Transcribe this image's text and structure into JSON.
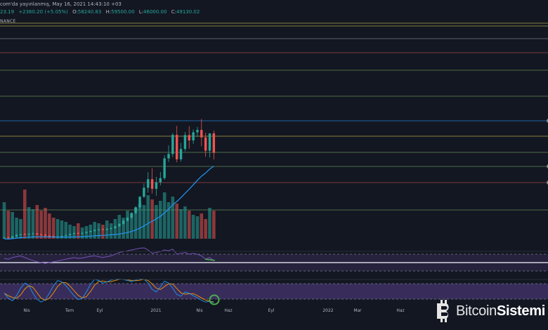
{
  "header": {
    "publisher_suffix": "com'da yayınlanmış, May 16, 2021 14:43:10 +03"
  },
  "quote": {
    "last_fragment": "23.19",
    "change": "+2360.20 (+5.05%)",
    "open_label": "O:",
    "open": "58240.83",
    "high_label": "H:",
    "high": "59500.00",
    "low_label": "L:",
    "low": "46000.00",
    "close_label": "C:",
    "close": "49130.02"
  },
  "exchange_fragment": "NANCE",
  "logo": {
    "text_light": "Bitcoin",
    "text_bold": "Sistemi",
    "icon": "bitcoin-b-icon"
  },
  "chart_data": {
    "type": "candlestick",
    "x_axis_labels": [
      "Nis",
      "Tem",
      "Eyl",
      "2021",
      "Nis",
      "Haz",
      "Eyl",
      "2022",
      "Mar",
      "Haz"
    ],
    "colors": {
      "up": "#26a69a",
      "down": "#ef5350",
      "ma": "#2196f3",
      "rsi": "#7e57c2",
      "stoch_k": "#2196f3",
      "stoch_d": "#ff9800",
      "background": "#131722",
      "highlight_circle": "#4caf50"
    },
    "horizontal_levels": [
      {
        "color": "#c9b84c"
      },
      {
        "color": "#c9b84c"
      },
      {
        "color": "#8c8c8c"
      },
      {
        "color": "#b24b4b"
      },
      {
        "color": "#6b9b5a"
      },
      {
        "color": "#6b9b5a"
      },
      {
        "color": "#2196f3"
      },
      {
        "color": "#c9b84c"
      },
      {
        "color": "#6b9b5a"
      },
      {
        "color": "#6b9b5a"
      },
      {
        "color": "#b24b4b"
      },
      {
        "color": "#6b9b5a"
      }
    ],
    "candles_ohlc": [
      [
        9.3,
        9.8,
        9.1,
        9.6
      ],
      [
        9.6,
        10.2,
        9.3,
        9.4
      ],
      [
        9.4,
        10.4,
        9.2,
        10.1
      ],
      [
        10.1,
        11.0,
        9.9,
        10.8
      ],
      [
        10.8,
        11.3,
        10.5,
        11.1
      ],
      [
        11.1,
        11.6,
        10.7,
        10.9
      ],
      [
        10.9,
        11.5,
        10.6,
        11.3
      ],
      [
        11.3,
        11.8,
        10.9,
        11.5
      ],
      [
        11.5,
        11.7,
        10.8,
        11.0
      ],
      [
        11.0,
        11.4,
        10.6,
        10.8
      ],
      [
        10.8,
        11.2,
        10.1,
        10.4
      ],
      [
        10.4,
        10.8,
        9.9,
        10.2
      ],
      [
        10.2,
        10.6,
        9.7,
        9.9
      ],
      [
        9.9,
        10.3,
        9.5,
        10.0
      ],
      [
        10.0,
        10.5,
        9.6,
        10.3
      ],
      [
        10.3,
        10.9,
        10.1,
        10.7
      ],
      [
        10.7,
        11.4,
        10.5,
        11.2
      ],
      [
        11.2,
        11.9,
        11.0,
        11.6
      ],
      [
        11.6,
        12.2,
        11.3,
        11.4
      ],
      [
        11.4,
        11.9,
        11.1,
        11.7
      ],
      [
        11.7,
        12.4,
        11.5,
        12.2
      ],
      [
        12.2,
        12.9,
        12.0,
        12.6
      ],
      [
        12.6,
        13.3,
        12.4,
        13.1
      ],
      [
        13.1,
        13.7,
        12.8,
        13.4
      ],
      [
        13.4,
        13.9,
        13.0,
        13.2
      ],
      [
        13.2,
        13.8,
        12.9,
        13.6
      ],
      [
        13.6,
        14.2,
        13.3,
        13.9
      ],
      [
        13.9,
        15.0,
        13.7,
        14.8
      ],
      [
        14.8,
        16.2,
        14.5,
        15.9
      ],
      [
        15.9,
        17.8,
        15.6,
        17.4
      ],
      [
        17.4,
        19.1,
        17.0,
        18.8
      ],
      [
        18.8,
        21.5,
        18.3,
        21.0
      ],
      [
        21.0,
        24.2,
        20.5,
        23.7
      ],
      [
        23.7,
        28.9,
        23.0,
        28.6
      ],
      [
        28.6,
        34.8,
        28.0,
        32.8
      ],
      [
        32.8,
        40.1,
        30.5,
        36.8
      ],
      [
        36.8,
        41.9,
        30.1,
        32.3
      ],
      [
        32.3,
        37.9,
        29.1,
        35.4
      ],
      [
        35.4,
        40.2,
        33.9,
        37.3
      ],
      [
        37.3,
        48.0,
        36.5,
        46.5
      ],
      [
        46.5,
        52.6,
        44.8,
        48.6
      ],
      [
        48.6,
        58.3,
        47.1,
        57.5
      ],
      [
        57.5,
        61.7,
        44.7,
        46.1
      ],
      [
        46.1,
        53.8,
        45.0,
        50.9
      ],
      [
        50.9,
        58.8,
        49.8,
        57.4
      ],
      [
        57.4,
        61.5,
        51.0,
        54.9
      ],
      [
        54.9,
        60.0,
        53.3,
        58.7
      ],
      [
        58.7,
        61.2,
        56.6,
        59.8
      ],
      [
        59.8,
        64.9,
        52.2,
        56.3
      ],
      [
        56.3,
        58.5,
        47.3,
        50.1
      ],
      [
        50.1,
        58.0,
        47.0,
        58.2
      ],
      [
        58.2,
        59.5,
        46.0,
        49.1
      ]
    ],
    "rsi_band": [
      30,
      70
    ],
    "stoch_band": [
      20,
      80
    ]
  }
}
